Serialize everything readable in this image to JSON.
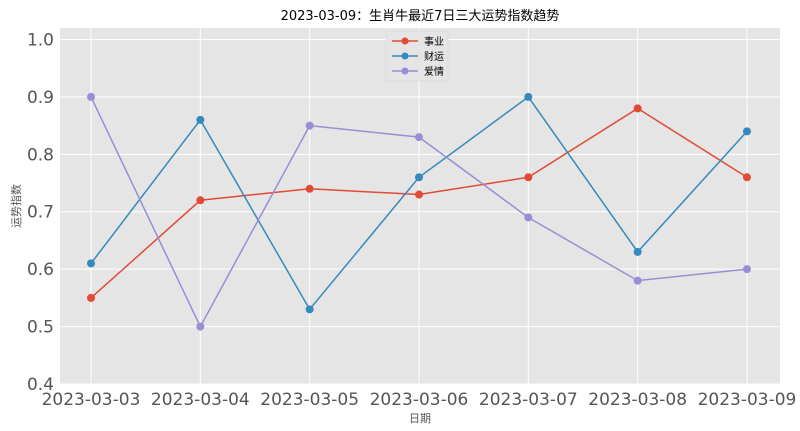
{
  "chart_data": {
    "type": "line",
    "title": "2023-03-09：生肖牛最近7日三大运势指数趋势",
    "xlabel": "日期",
    "ylabel": "运势指数",
    "categories": [
      "2023-03-03",
      "2023-03-04",
      "2023-03-05",
      "2023-03-06",
      "2023-03-07",
      "2023-03-08",
      "2023-03-09"
    ],
    "ylim": [
      0.4,
      1.02
    ],
    "yticks": [
      0.4,
      0.5,
      0.6,
      0.7,
      0.8,
      0.9,
      1.0
    ],
    "ytick_labels": [
      "0.4",
      "0.5",
      "0.6",
      "0.7",
      "0.8",
      "0.9",
      "1.0"
    ],
    "grid": true,
    "legend_position": "top-center",
    "series": [
      {
        "name": "事业",
        "color": "#E24A33",
        "values": [
          0.55,
          0.72,
          0.74,
          0.73,
          0.76,
          0.88,
          0.76
        ]
      },
      {
        "name": "财运",
        "color": "#348ABD",
        "values": [
          0.61,
          0.86,
          0.53,
          0.76,
          0.9,
          0.63,
          0.84
        ]
      },
      {
        "name": "爱情",
        "color": "#988ED5",
        "values": [
          0.9,
          0.5,
          0.85,
          0.83,
          0.69,
          0.58,
          0.6
        ]
      }
    ]
  }
}
